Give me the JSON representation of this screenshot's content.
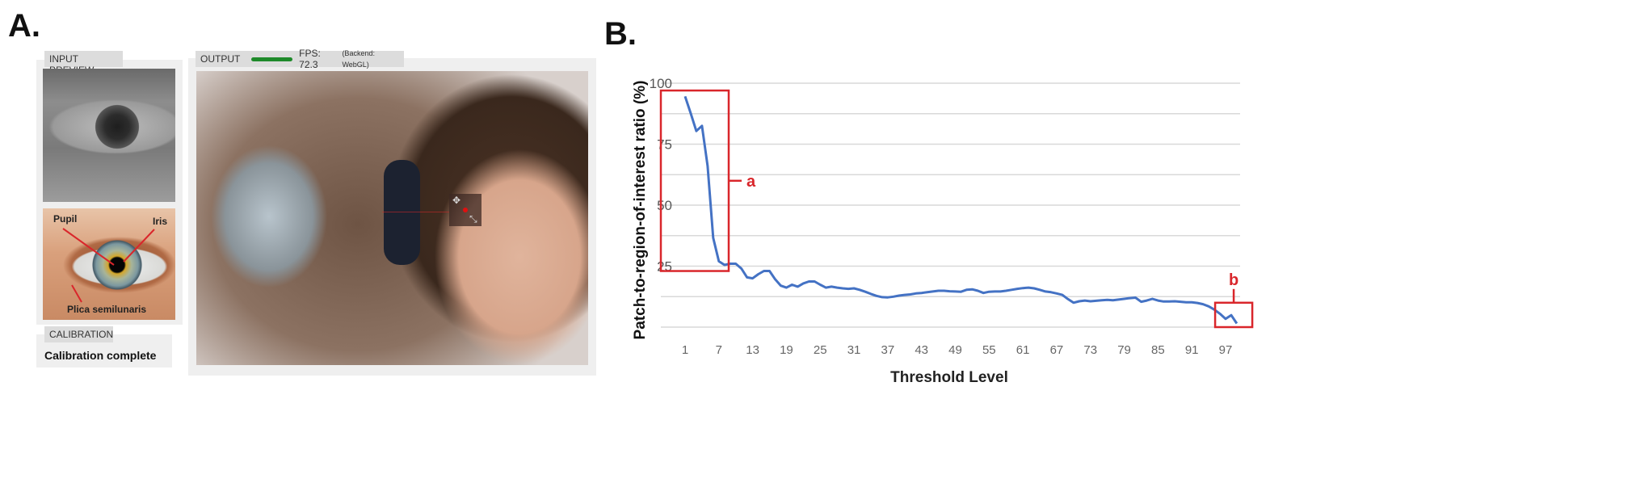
{
  "figure": {
    "panel_a_label": "A.",
    "panel_b_label": "B."
  },
  "ui": {
    "input_preview": {
      "tab_label": "INPUT PREVIEW"
    },
    "eye_diagram": {
      "labels": {
        "pupil": "Pupil",
        "iris": "Iris",
        "plica": "Plica semilunaris"
      }
    },
    "calibration": {
      "tab_label": "CALIBRATION",
      "status": "Calibration complete"
    },
    "output": {
      "tab_label": "OUTPUT",
      "fps_text": "FPS: 72.3",
      "backend_text": "(Backend: WebGL)",
      "fps_bar_color": "#1e8a2a"
    }
  },
  "chart_data": {
    "type": "line",
    "title": "",
    "xlabel": "Threshold Level",
    "ylabel": "Patch-to-region-of-interest ratio (%)",
    "ylim": [
      0,
      100
    ],
    "xlim": [
      1,
      99
    ],
    "yticks": [
      25,
      50,
      75,
      100
    ],
    "gridlines": [
      12.5,
      25,
      37.5,
      50,
      62.5,
      75,
      87.5,
      100
    ],
    "xtick_labels": [
      "1",
      "7",
      "13",
      "19",
      "25",
      "31",
      "37",
      "43",
      "49",
      "55",
      "61",
      "67",
      "73",
      "79",
      "85",
      "91",
      "97"
    ],
    "series": [
      {
        "name": "ratio",
        "color": "#4472c4",
        "x": [
          1,
          2,
          3,
          4,
          5,
          6,
          7,
          8,
          9,
          10,
          11,
          12,
          13,
          14,
          15,
          16,
          17,
          18,
          19,
          20,
          21,
          22,
          23,
          24,
          25,
          26,
          27,
          28,
          29,
          30,
          31,
          32,
          33,
          34,
          35,
          36,
          37,
          38,
          39,
          40,
          41,
          42,
          43,
          44,
          45,
          46,
          47,
          48,
          49,
          50,
          51,
          52,
          53,
          54,
          55,
          56,
          57,
          58,
          59,
          60,
          61,
          62,
          63,
          64,
          65,
          66,
          67,
          68,
          69,
          70,
          71,
          72,
          73,
          74,
          75,
          76,
          77,
          78,
          79,
          80,
          81,
          82,
          83,
          84,
          85,
          86,
          87,
          88,
          89,
          90,
          91,
          92,
          93,
          94,
          95,
          96,
          97,
          98,
          99
        ],
        "values": [
          94.6,
          87.6,
          80.4,
          82.5,
          66,
          36.6,
          27,
          25.5,
          26,
          26,
          24,
          20.4,
          20,
          21.7,
          23,
          23,
          19.6,
          17,
          16.2,
          17.4,
          16.6,
          17.9,
          18.7,
          18.7,
          17.4,
          16.2,
          16.6,
          16.2,
          15.9,
          15.7,
          15.9,
          15.3,
          14.5,
          13.6,
          12.8,
          12.3,
          12.2,
          12.5,
          12.9,
          13.2,
          13.4,
          13.8,
          14,
          14.3,
          14.6,
          14.9,
          14.9,
          14.7,
          14.6,
          14.5,
          15.3,
          15.5,
          14.9,
          14,
          14.5,
          14.6,
          14.6,
          14.9,
          15.3,
          15.7,
          16,
          16.2,
          15.9,
          15.3,
          14.6,
          14.3,
          13.8,
          13.2,
          11.5,
          10,
          10.6,
          10.9,
          10.6,
          10.8,
          11,
          11.2,
          11,
          11.3,
          11.6,
          11.9,
          12.1,
          10.4,
          10.9,
          11.6,
          10.9,
          10.5,
          10.5,
          10.6,
          10.4,
          10.2,
          10.2,
          9.9,
          9.4,
          8.5,
          7.2,
          5.5,
          3.4,
          4.9,
          1.5
        ]
      }
    ],
    "annotations": [
      {
        "label": "a",
        "x_range": [
          1,
          8
        ],
        "y_range": [
          23,
          97
        ],
        "color": "#d9262b"
      },
      {
        "label": "b",
        "x_range": [
          94,
          100
        ],
        "y_range": [
          0,
          10
        ],
        "color": "#d9262b"
      }
    ]
  }
}
